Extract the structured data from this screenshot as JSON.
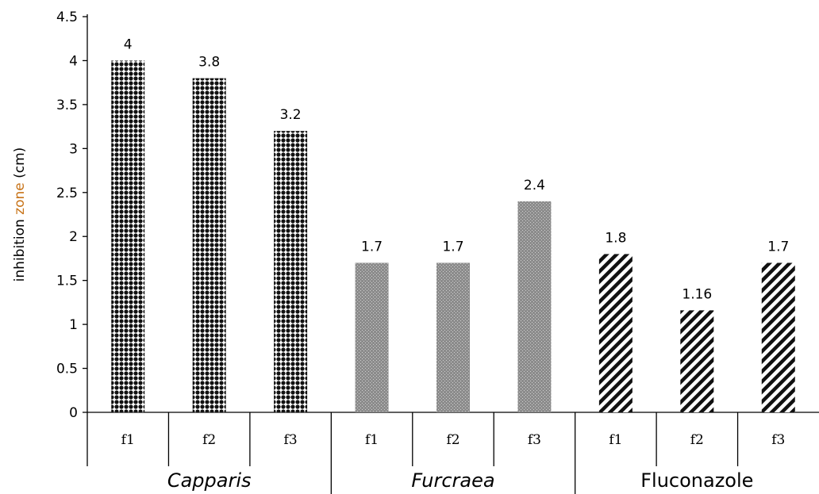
{
  "chart_data": {
    "type": "bar",
    "ylabel_parts": [
      "inhibition ",
      "zone",
      "  (cm)"
    ],
    "ylim": [
      0,
      4.5
    ],
    "yticks": [
      "0",
      "0.5",
      "1",
      "1.5",
      "2",
      "2.5",
      "3",
      "3.5",
      "4",
      "4.5"
    ],
    "grid": false,
    "groups": [
      {
        "name": "Capparis",
        "italic": true,
        "pattern": "dots",
        "categories": [
          "f1",
          "f2",
          "f3"
        ],
        "values": [
          4,
          3.8,
          3.2
        ],
        "labels": [
          "4",
          "3.8",
          "3.2"
        ]
      },
      {
        "name": "Furcraea",
        "italic": true,
        "pattern": "stipple",
        "categories": [
          "f1",
          "f2",
          "f3"
        ],
        "values": [
          1.7,
          1.7,
          2.4
        ],
        "labels": [
          "1.7",
          "1.7",
          "2.4"
        ]
      },
      {
        "name": "Fluconazole",
        "italic": false,
        "pattern": "diagonal",
        "categories": [
          "f1",
          "f2",
          "f3"
        ],
        "values": [
          1.8,
          1.16,
          1.7
        ],
        "labels": [
          "1.8",
          "1.16",
          "1.7"
        ]
      }
    ]
  },
  "colors": {
    "bar_dark": "#111111",
    "stipple_bg": "#8c8c8c",
    "axis": "#000000",
    "ylabel_highlight": "#c8741a"
  }
}
